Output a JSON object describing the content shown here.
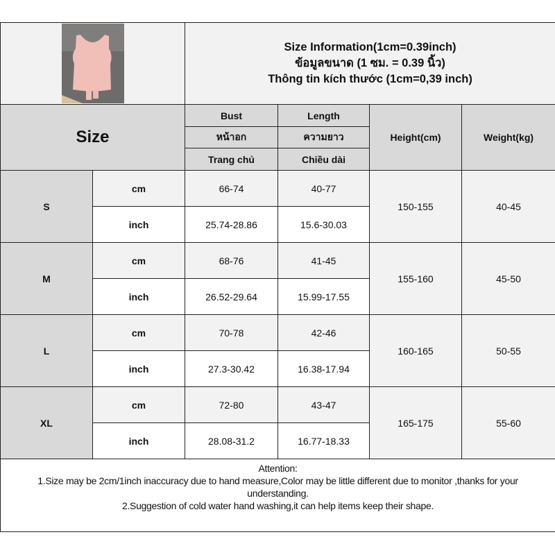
{
  "header": {
    "title_lines": [
      "Size Information(1cm=0.39inch)",
      "ข้อมูลขนาด (1 ซม. = 0.39 นิ้ว)",
      "Thông tin kích thước (1cm=0,39 inch)"
    ],
    "size_label": "Size",
    "bust": [
      "Bust",
      "หน้าอก",
      "Trang chủ"
    ],
    "length": [
      "Length",
      "ความยาว",
      "Chiều dài"
    ],
    "height": "Height(cm)",
    "weight": "Weight(kg)"
  },
  "rows": [
    {
      "size": "S",
      "cm_label": "cm",
      "inch_label": "inch",
      "bust_cm": "66-74",
      "length_cm": "40-77",
      "bust_inch": "25.74-28.86",
      "length_inch": "15.6-30.03",
      "height": "150-155",
      "weight": "40-45"
    },
    {
      "size": "M",
      "cm_label": "cm",
      "inch_label": "inch",
      "bust_cm": "68-76",
      "length_cm": "41-45",
      "bust_inch": "26.52-29.64",
      "length_inch": "15.99-17.55",
      "height": "155-160",
      "weight": "45-50"
    },
    {
      "size": "L",
      "cm_label": "cm",
      "inch_label": "inch",
      "bust_cm": "70-78",
      "length_cm": "42-46",
      "bust_inch": "27.3-30.42",
      "length_inch": "16.38-17.94",
      "height": "160-165",
      "weight": "50-55"
    },
    {
      "size": "XL",
      "cm_label": "cm",
      "inch_label": "inch",
      "bust_cm": "72-80",
      "length_cm": "43-47",
      "bust_inch": "28.08-31.2",
      "length_inch": "16.77-18.33",
      "height": "165-175",
      "weight": "55-60"
    }
  ],
  "attention": {
    "title": "Attention:",
    "line1": "1.Size may be 2cm/1inch inaccuracy due to hand measure,Color may be little different due to monitor ,thanks for your understanding.",
    "line2": "2.Suggestion of cold water hand washing,it can help items keep their shape."
  }
}
